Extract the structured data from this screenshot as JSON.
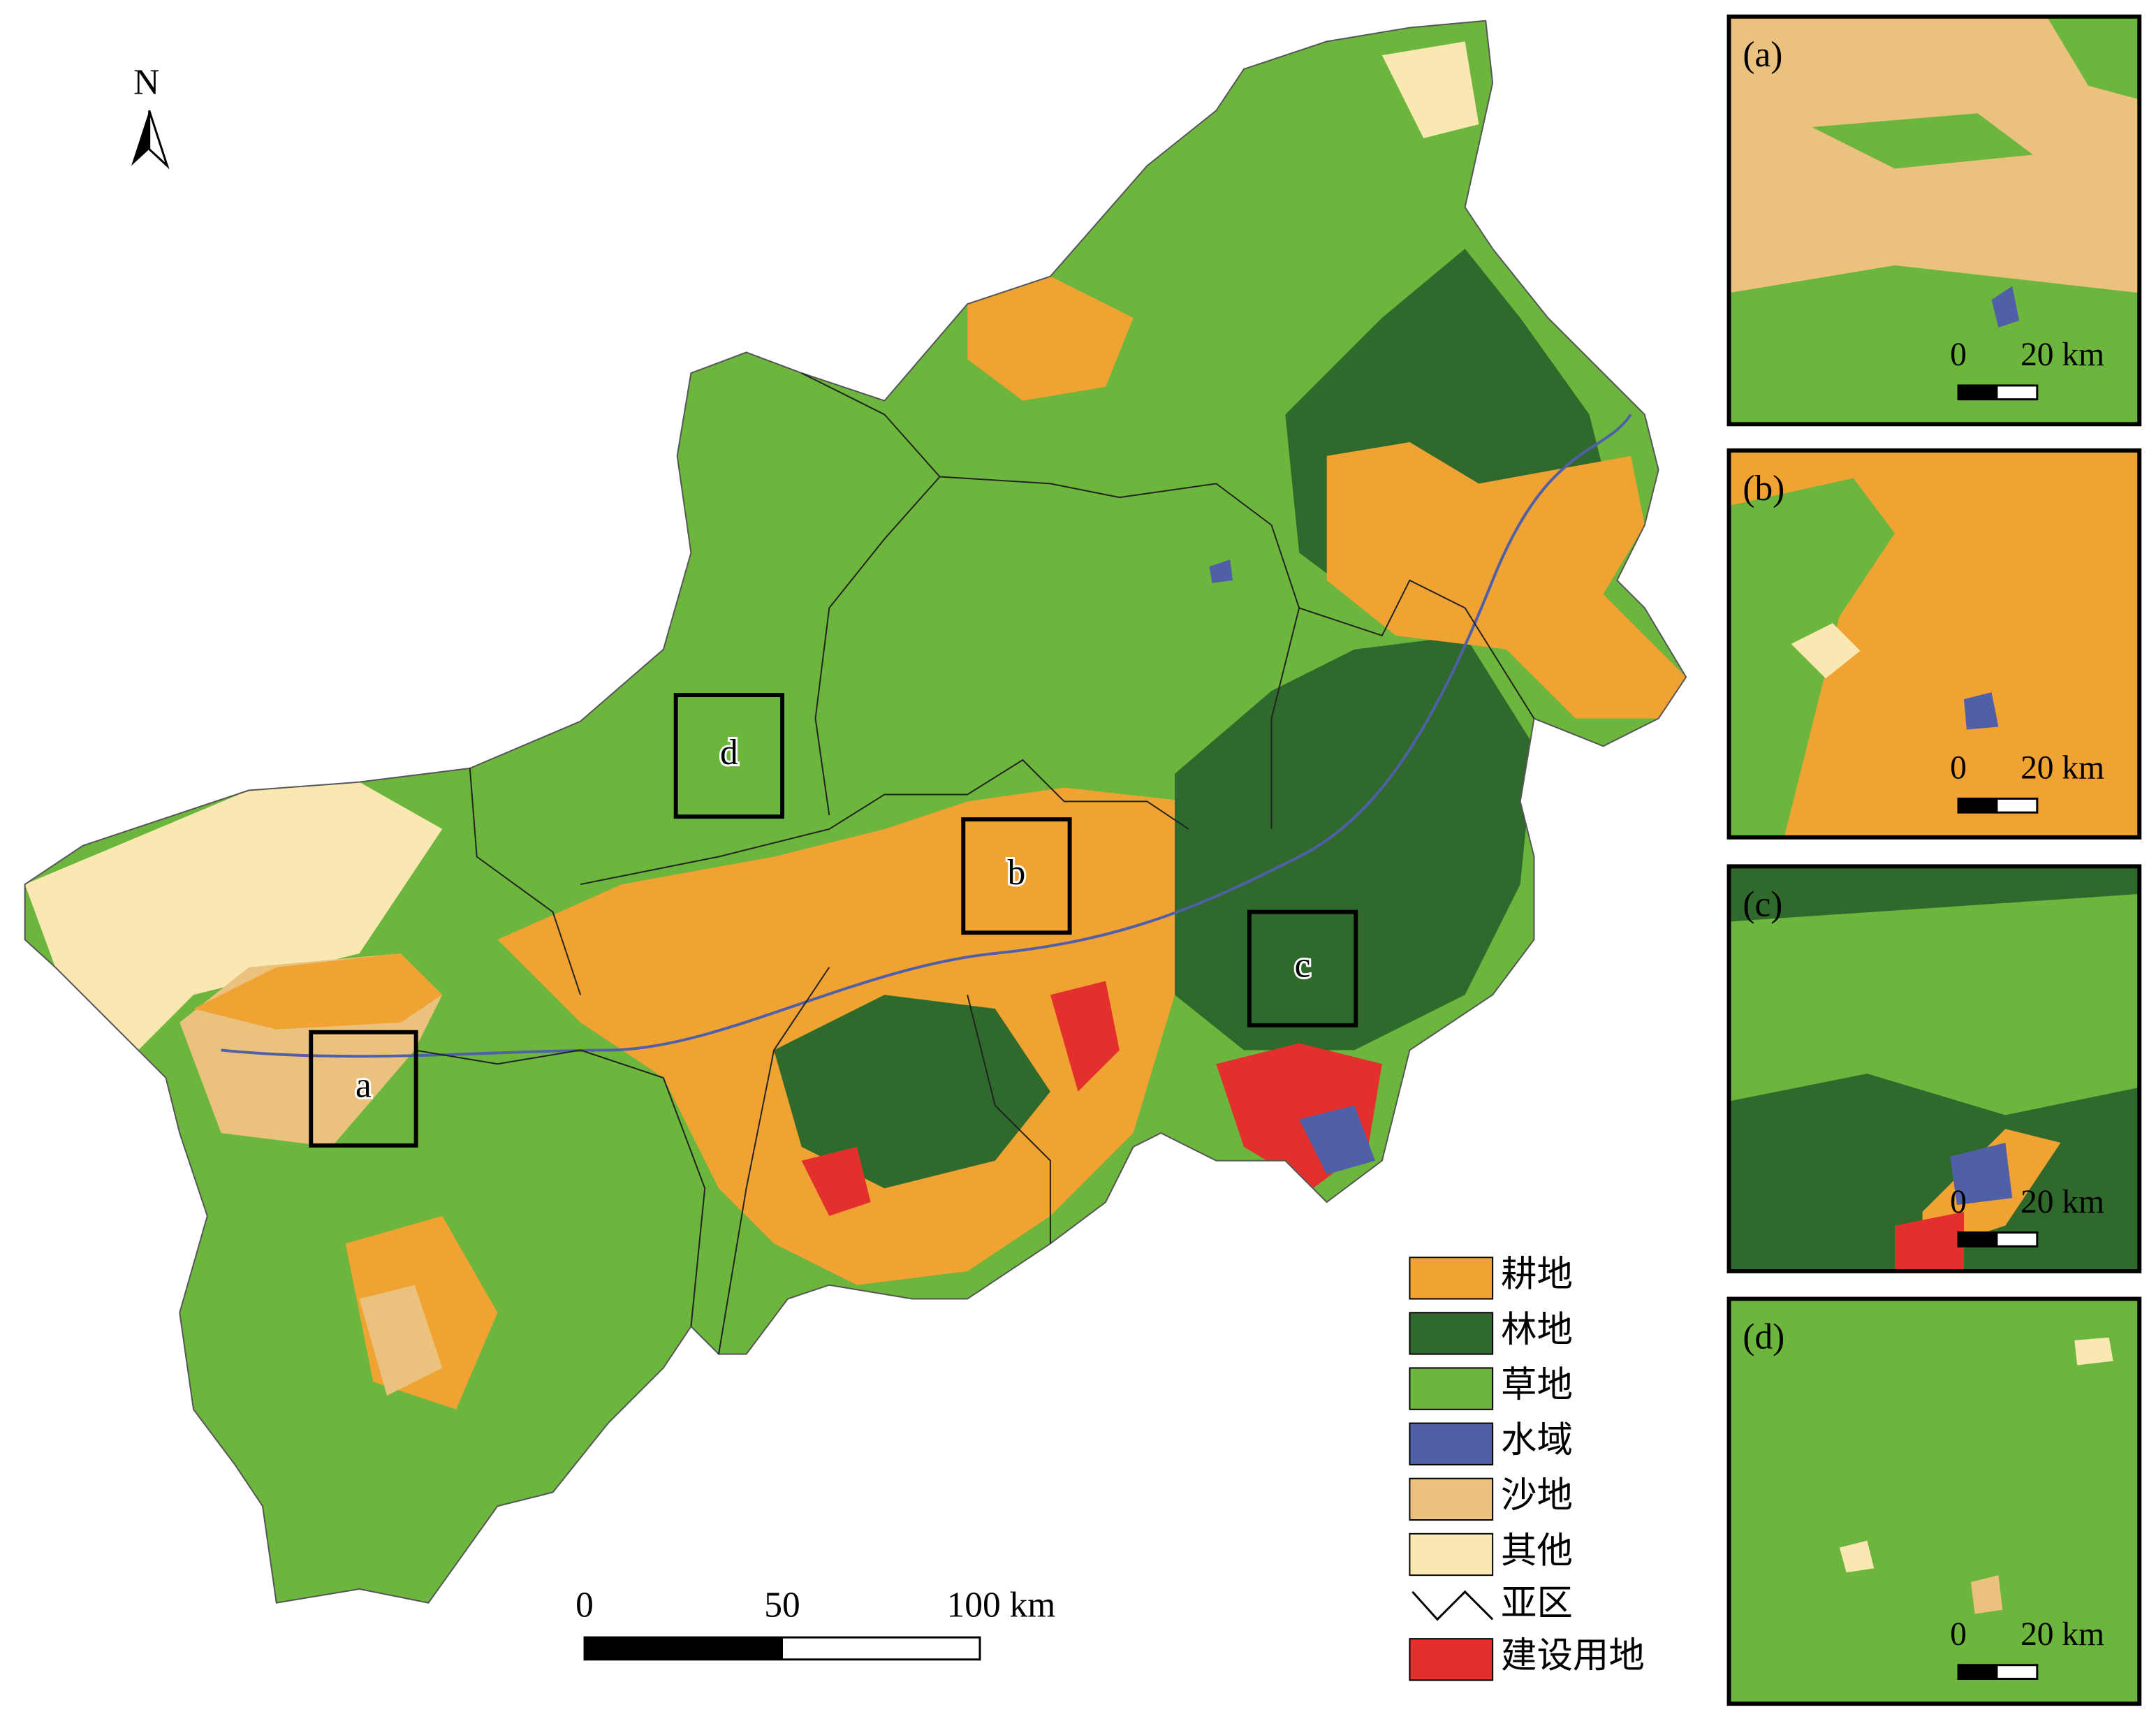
{
  "north_arrow": {
    "label": "N"
  },
  "scale_bar": {
    "ticks": [
      {
        "value": 0,
        "label": "0"
      },
      {
        "value": 50,
        "label": "50"
      },
      {
        "value": 100,
        "label": "100 km"
      }
    ]
  },
  "legend": {
    "items": [
      {
        "name": "耕地",
        "color": "#f0a232",
        "symbol": "patch"
      },
      {
        "name": "林地",
        "color": "#2f6a2c",
        "symbol": "patch"
      },
      {
        "name": "草地",
        "color": "#6db63d",
        "symbol": "patch"
      },
      {
        "name": "水域",
        "color": "#4f5fa8",
        "symbol": "patch"
      },
      {
        "name": "沙地",
        "color": "#eac27e",
        "symbol": "patch"
      },
      {
        "name": "其他",
        "color": "#f9e8b2",
        "symbol": "patch"
      },
      {
        "name": "亚区",
        "color": "#000000",
        "symbol": "line"
      },
      {
        "name": "建设用地",
        "color": "#e3302c",
        "symbol": "patch"
      }
    ]
  },
  "boxes": [
    {
      "label": "a"
    },
    {
      "label": "b"
    },
    {
      "label": "c"
    },
    {
      "label": "d"
    }
  ],
  "insets": [
    {
      "label": "(a)",
      "scale": [
        {
          "value": 0,
          "label": "0"
        },
        {
          "value": 20,
          "label": "20 km"
        }
      ]
    },
    {
      "label": "(b)",
      "scale": [
        {
          "value": 0,
          "label": "0"
        },
        {
          "value": 20,
          "label": "20 km"
        }
      ]
    },
    {
      "label": "(c)",
      "scale": [
        {
          "value": 0,
          "label": "0"
        },
        {
          "value": 20,
          "label": "20 km"
        }
      ]
    },
    {
      "label": "(d)",
      "scale": [
        {
          "value": 0,
          "label": "0"
        },
        {
          "value": 20,
          "label": "20 km"
        }
      ]
    }
  ]
}
